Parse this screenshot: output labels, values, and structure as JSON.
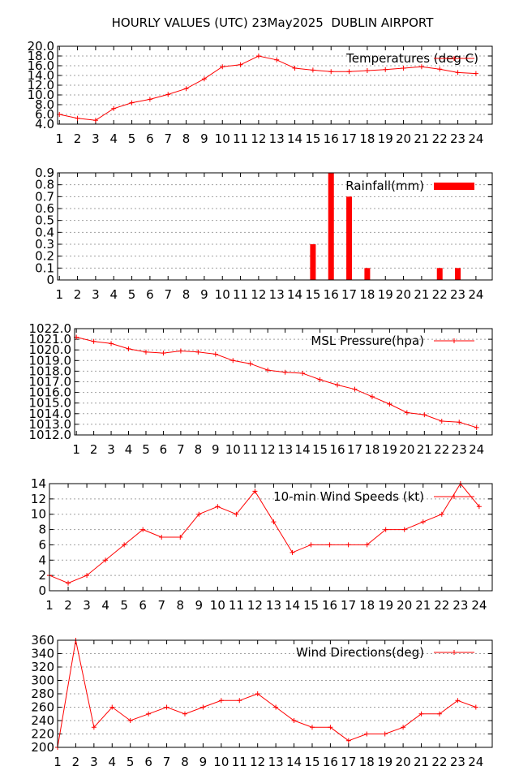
{
  "title": "HOURLY VALUES (UTC) 23May2025  DUBLIN AIRPORT",
  "colors": {
    "series": "#ff0000",
    "grid": "#a0a0a0",
    "frame": "#000000"
  },
  "chart_data": [
    {
      "type": "line",
      "legend": "Temperatures (deg C)",
      "legend_position": "top-right",
      "grid": true,
      "x": [
        1,
        2,
        3,
        4,
        5,
        6,
        7,
        8,
        9,
        10,
        11,
        12,
        13,
        14,
        15,
        16,
        17,
        18,
        19,
        20,
        21,
        22,
        23,
        24
      ],
      "x_tick_labels": [
        "1",
        "2",
        "3",
        "4",
        "5",
        "6",
        "7",
        "8",
        "9",
        "10",
        "11",
        "12",
        "13",
        "14",
        "15",
        "16",
        "17",
        "18",
        "19",
        "20",
        "21",
        "22",
        "23",
        "24"
      ],
      "y": [
        6.0,
        5.2,
        4.8,
        7.2,
        8.4,
        9.1,
        10.1,
        11.3,
        13.3,
        15.8,
        16.2,
        18.0,
        17.2,
        15.5,
        15.1,
        14.8,
        14.8,
        15.0,
        15.2,
        15.5,
        15.8,
        15.3,
        14.6,
        14.4
      ],
      "ylim": [
        4.0,
        20.0
      ],
      "y_ticks": [
        4,
        6,
        8,
        10,
        12,
        14,
        16,
        18,
        20
      ],
      "y_tick_labels": [
        "4.0",
        "6.0",
        "8.0",
        "10.0",
        "12.0",
        "14.0",
        "16.0",
        "18.0",
        "20.0"
      ]
    },
    {
      "type": "bar",
      "legend": "Rainfall(mm)",
      "legend_position": "top-right",
      "grid": true,
      "x": [
        1,
        2,
        3,
        4,
        5,
        6,
        7,
        8,
        9,
        10,
        11,
        12,
        13,
        14,
        15,
        16,
        17,
        18,
        19,
        20,
        21,
        22,
        23,
        24
      ],
      "x_tick_labels": [
        "1",
        "2",
        "3",
        "4",
        "5",
        "6",
        "7",
        "8",
        "9",
        "10",
        "11",
        "12",
        "13",
        "14",
        "15",
        "16",
        "17",
        "18",
        "19",
        "20",
        "21",
        "22",
        "23",
        "24"
      ],
      "y": [
        0,
        0,
        0,
        0,
        0,
        0,
        0,
        0,
        0,
        0,
        0,
        0,
        0,
        0,
        0.3,
        0.9,
        0.7,
        0.1,
        0,
        0,
        0,
        0.1,
        0.1,
        0
      ],
      "ylim": [
        0,
        0.9
      ],
      "y_ticks": [
        0,
        0.1,
        0.2,
        0.3,
        0.4,
        0.5,
        0.6,
        0.7,
        0.8,
        0.9
      ],
      "y_tick_labels": [
        "0",
        "0.1",
        "0.2",
        "0.3",
        "0.4",
        "0.5",
        "0.6",
        "0.7",
        "0.8",
        "0.9"
      ]
    },
    {
      "type": "line",
      "legend": "MSL Pressure(hpa)",
      "legend_position": "top-right",
      "grid": true,
      "x": [
        1,
        2,
        3,
        4,
        5,
        6,
        7,
        8,
        9,
        10,
        11,
        12,
        13,
        14,
        15,
        16,
        17,
        18,
        19,
        20,
        21,
        22,
        23,
        24
      ],
      "x_tick_labels": [
        "1",
        "2",
        "3",
        "4",
        "5",
        "6",
        "7",
        "8",
        "9",
        "10",
        "11",
        "12",
        "13",
        "14",
        "15",
        "16",
        "17",
        "18",
        "19",
        "20",
        "21",
        "22",
        "23",
        "24"
      ],
      "y": [
        1021.2,
        1020.8,
        1020.6,
        1020.1,
        1019.8,
        1019.7,
        1019.9,
        1019.8,
        1019.6,
        1019.0,
        1018.7,
        1018.1,
        1017.9,
        1017.8,
        1017.2,
        1016.7,
        1016.3,
        1015.6,
        1014.9,
        1014.1,
        1013.9,
        1013.3,
        1013.2,
        1012.7
      ],
      "ylim": [
        1012.0,
        1022.0
      ],
      "y_ticks": [
        1012,
        1013,
        1014,
        1015,
        1016,
        1017,
        1018,
        1019,
        1020,
        1021,
        1022
      ],
      "y_tick_labels": [
        "1012.0",
        "1013.0",
        "1014.0",
        "1015.0",
        "1016.0",
        "1017.0",
        "1018.0",
        "1019.0",
        "1020.0",
        "1021.0",
        "1022.0"
      ]
    },
    {
      "type": "line",
      "legend": "10-min Wind Speeds (kt)",
      "legend_position": "top-right",
      "grid": true,
      "x": [
        1,
        2,
        3,
        4,
        5,
        6,
        7,
        8,
        9,
        10,
        11,
        12,
        13,
        14,
        15,
        16,
        17,
        18,
        19,
        20,
        21,
        22,
        23,
        24
      ],
      "x_tick_labels": [
        "1",
        "2",
        "3",
        "4",
        "5",
        "6",
        "7",
        "8",
        "9",
        "10",
        "11",
        "12",
        "13",
        "14",
        "15",
        "16",
        "17",
        "18",
        "19",
        "20",
        "21",
        "22",
        "23",
        "24"
      ],
      "y": [
        2,
        1,
        2,
        4,
        6,
        8,
        7,
        7,
        10,
        11,
        10,
        13,
        9,
        5,
        6,
        6,
        6,
        6,
        8,
        8,
        9,
        10,
        14,
        11
      ],
      "ylim": [
        0,
        14
      ],
      "y_ticks": [
        0,
        2,
        4,
        6,
        8,
        10,
        12,
        14
      ],
      "y_tick_labels": [
        "0",
        "2",
        "4",
        "6",
        "8",
        "10",
        "12",
        "14"
      ]
    },
    {
      "type": "line",
      "legend": "Wind Directions(deg)",
      "legend_position": "top-right",
      "grid": true,
      "x": [
        1,
        2,
        3,
        4,
        5,
        6,
        7,
        8,
        9,
        10,
        11,
        12,
        13,
        14,
        15,
        16,
        17,
        18,
        19,
        20,
        21,
        22,
        23,
        24
      ],
      "x_tick_labels": [
        "1",
        "2",
        "3",
        "4",
        "5",
        "6",
        "7",
        "8",
        "9",
        "10",
        "11",
        "12",
        "13",
        "14",
        "15",
        "16",
        "17",
        "18",
        "19",
        "20",
        "21",
        "22",
        "23",
        "24"
      ],
      "y": [
        200,
        360,
        230,
        260,
        240,
        250,
        260,
        250,
        260,
        270,
        270,
        280,
        260,
        240,
        230,
        230,
        210,
        220,
        220,
        230,
        250,
        250,
        270,
        260
      ],
      "ylim": [
        200,
        360
      ],
      "y_ticks": [
        200,
        220,
        240,
        260,
        280,
        300,
        320,
        340,
        360
      ],
      "y_tick_labels": [
        "200",
        "220",
        "240",
        "260",
        "280",
        "300",
        "320",
        "340",
        "360"
      ]
    }
  ]
}
